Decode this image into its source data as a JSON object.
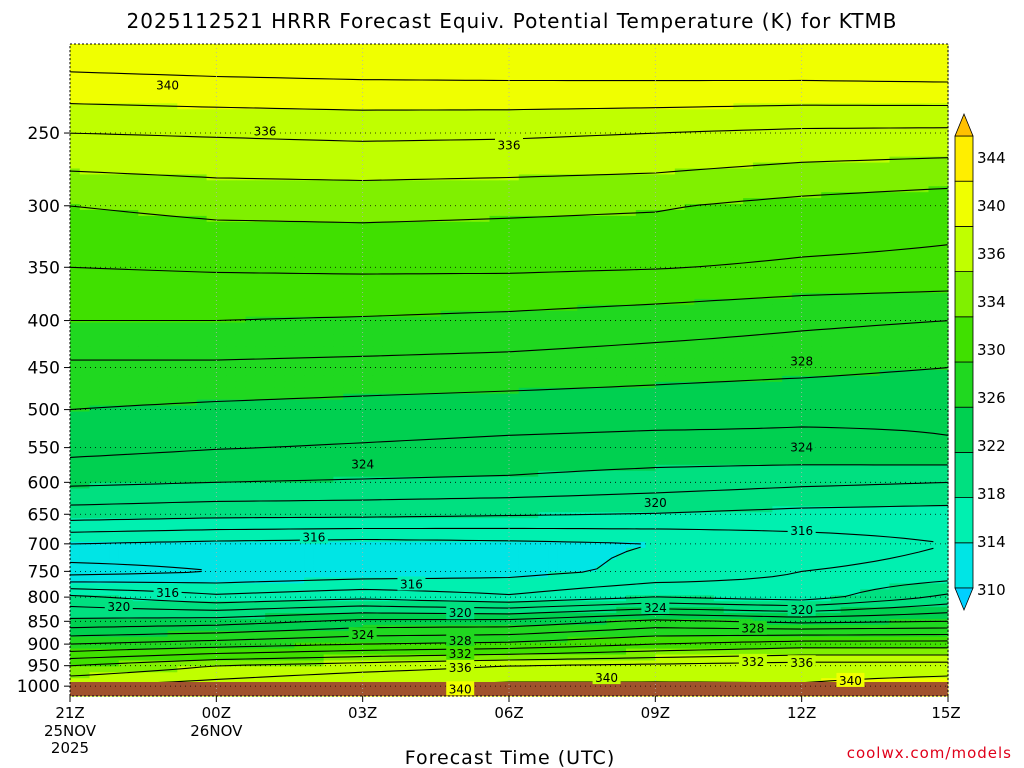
{
  "chart_data": {
    "type": "heatmap",
    "subtype": "time-height cross section, filled contours",
    "title": "2025112521 HRRR Forecast Equiv. Potential Temperature (K) for KTMB",
    "xlabel": "Forecast Time (UTC)",
    "ylabel": "",
    "x_ticks": [
      {
        "label": "21Z",
        "sub": [
          "25NOV",
          "2025"
        ],
        "hour": 0
      },
      {
        "label": "00Z",
        "sub": [
          "26NOV"
        ],
        "hour": 3
      },
      {
        "label": "03Z",
        "sub": [],
        "hour": 6
      },
      {
        "label": "06Z",
        "sub": [],
        "hour": 9
      },
      {
        "label": "09Z",
        "sub": [],
        "hour": 12
      },
      {
        "label": "12Z",
        "sub": [],
        "hour": 15
      },
      {
        "label": "15Z",
        "sub": [],
        "hour": 18
      }
    ],
    "xlim_hours": [
      0,
      18
    ],
    "y_ticks": [
      250,
      300,
      350,
      400,
      450,
      500,
      550,
      600,
      650,
      700,
      750,
      800,
      850,
      900,
      950,
      1000
    ],
    "ylim_hpa": [
      1025,
      200
    ],
    "y_scale": "log",
    "grid": true,
    "colorbar": {
      "labels": [
        "344",
        "340",
        "336",
        "334",
        "330",
        "326",
        "322",
        "318",
        "314",
        "310"
      ],
      "levels": [
        310,
        314,
        318,
        322,
        326,
        330,
        334,
        336,
        340,
        344
      ],
      "colors": [
        "#00e5e5",
        "#00f0b0",
        "#00e080",
        "#00d050",
        "#20d820",
        "#40e000",
        "#80f000",
        "#c0ff00",
        "#f0ff00",
        "#ffee00"
      ],
      "extend": "both"
    },
    "ground_color": "#a0522d",
    "profile": {
      "hours": [
        0,
        3,
        6,
        9,
        12,
        15,
        18
      ],
      "levels_hpa": [
        210,
        250,
        300,
        350,
        400,
        450,
        500,
        550,
        600,
        650,
        700,
        750,
        800,
        850,
        900,
        950,
        1000
      ],
      "theta_e": [
        [
          342.5,
          342.8,
          343.0,
          343.1,
          343.2,
          343.3,
          343.5
        ],
        [
          338.0,
          338.2,
          338.4,
          338.3,
          338.0,
          337.6,
          337.5
        ],
        [
          334.0,
          334.5,
          334.6,
          334.4,
          334.2,
          333.4,
          332.8
        ],
        [
          332.0,
          332.2,
          332.3,
          332.3,
          332.1,
          331.7,
          331.5
        ],
        [
          330.0,
          330.0,
          329.8,
          329.5,
          329.0,
          328.4,
          328.0
        ],
        [
          327.6,
          327.6,
          327.4,
          327.2,
          326.8,
          326.5,
          326.0
        ],
        [
          326.0,
          325.6,
          325.3,
          325.0,
          324.8,
          324.4,
          324.2
        ],
        [
          324.6,
          324.1,
          323.8,
          323.5,
          323.3,
          323.5,
          323.9
        ],
        [
          322.4,
          322.0,
          321.8,
          321.6,
          321.0,
          320.4,
          320.0
        ],
        [
          319.0,
          318.6,
          318.5,
          318.2,
          317.9,
          317.4,
          317.2
        ],
        [
          314.0,
          313.5,
          313.2,
          313.5,
          314.0,
          315.0,
          316.0
        ],
        [
          311.0,
          312.0,
          312.6,
          313.3,
          314.5,
          316.0,
          316.6
        ],
        [
          318.5,
          316.5,
          317.5,
          316.3,
          318.0,
          317.0,
          320.5
        ],
        [
          322.5,
          323.0,
          324.5,
          324.6,
          326.5,
          325.5,
          326.0
        ],
        [
          328.0,
          329.0,
          330.0,
          330.5,
          332.0,
          333.0,
          333.0
        ],
        [
          334.0,
          336.0,
          337.0,
          338.0,
          338.5,
          339.0,
          339.0
        ],
        [
          338.0,
          339.0,
          340.2,
          340.5,
          340.4,
          340.2,
          341.0
        ]
      ]
    },
    "contour_labels": [
      {
        "text": "340",
        "hour": 2.0,
        "hpa": 222
      },
      {
        "text": "336",
        "hour": 4.0,
        "hpa": 249
      },
      {
        "text": "336",
        "hour": 9.0,
        "hpa": 258
      },
      {
        "text": "328",
        "hour": 15.0,
        "hpa": 443
      },
      {
        "text": "324",
        "hour": 6.0,
        "hpa": 574
      },
      {
        "text": "324",
        "hour": 15.0,
        "hpa": 550
      },
      {
        "text": "320",
        "hour": 12.0,
        "hpa": 632
      },
      {
        "text": "316",
        "hour": 5.0,
        "hpa": 689
      },
      {
        "text": "316",
        "hour": 15.0,
        "hpa": 678
      },
      {
        "text": "316",
        "hour": 2.0,
        "hpa": 792
      },
      {
        "text": "316",
        "hour": 7.0,
        "hpa": 775
      },
      {
        "text": "320",
        "hour": 1.0,
        "hpa": 820
      },
      {
        "text": "320",
        "hour": 8.0,
        "hpa": 833
      },
      {
        "text": "320",
        "hour": 15.0,
        "hpa": 826
      },
      {
        "text": "324",
        "hour": 6.0,
        "hpa": 880
      },
      {
        "text": "324",
        "hour": 12.0,
        "hpa": 822
      },
      {
        "text": "328",
        "hour": 8.0,
        "hpa": 893
      },
      {
        "text": "328",
        "hour": 14.0,
        "hpa": 866
      },
      {
        "text": "332",
        "hour": 8.0,
        "hpa": 923
      },
      {
        "text": "332",
        "hour": 14.0,
        "hpa": 941
      },
      {
        "text": "336",
        "hour": 8.0,
        "hpa": 955
      },
      {
        "text": "336",
        "hour": 15.0,
        "hpa": 944
      },
      {
        "text": "340",
        "hour": 11.0,
        "hpa": 980
      },
      {
        "text": "340",
        "hour": 16.0,
        "hpa": 987
      },
      {
        "text": "340",
        "hour": 8.0,
        "hpa": 1008
      }
    ]
  },
  "credit": "coolwx.com/models"
}
